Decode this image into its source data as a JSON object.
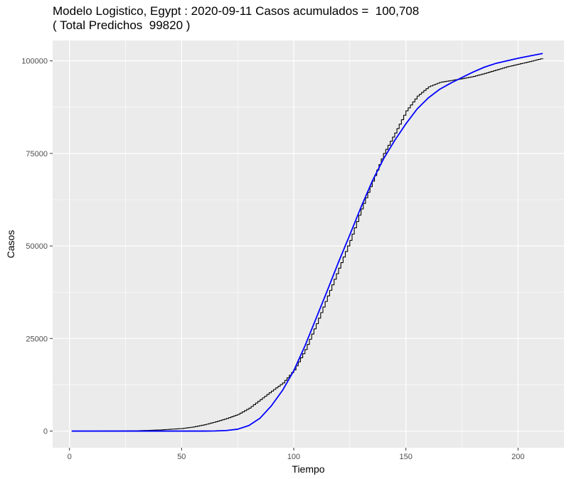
{
  "chart_data": {
    "type": "line",
    "title": "Modelo Logistico, Egypt : 2020-09-11 Casos acumulados =  100,708",
    "subtitle": "( Total Predichos  99820 )",
    "xlabel": "Tiempo",
    "ylabel": "Casos",
    "xlim": [
      -7.5,
      220.5
    ],
    "ylim": [
      -4500,
      105500
    ],
    "x_ticks": [
      0,
      50,
      100,
      150,
      200
    ],
    "x_tick_labels": [
      "0",
      "50",
      "100",
      "150",
      "200"
    ],
    "y_ticks": [
      0,
      25000,
      50000,
      75000,
      100000
    ],
    "y_tick_labels": [
      "0",
      "25000",
      "50000",
      "75000",
      "100000"
    ],
    "grid": true,
    "series": [
      {
        "style": "step",
        "color": "#000000",
        "points": [
          [
            1,
            0
          ],
          [
            20,
            20
          ],
          [
            30,
            100
          ],
          [
            40,
            300
          ],
          [
            50,
            700
          ],
          [
            55,
            1100
          ],
          [
            60,
            1700
          ],
          [
            65,
            2500
          ],
          [
            70,
            3400
          ],
          [
            75,
            4500
          ],
          [
            80,
            6200
          ],
          [
            85,
            8500
          ],
          [
            90,
            10800
          ],
          [
            95,
            13000
          ],
          [
            100,
            16500
          ],
          [
            105,
            22000
          ],
          [
            110,
            29000
          ],
          [
            115,
            36500
          ],
          [
            120,
            44000
          ],
          [
            125,
            51500
          ],
          [
            130,
            60000
          ],
          [
            135,
            67500
          ],
          [
            140,
            75000
          ],
          [
            145,
            80500
          ],
          [
            150,
            86500
          ],
          [
            155,
            90500
          ],
          [
            160,
            93000
          ],
          [
            165,
            94200
          ],
          [
            170,
            94700
          ],
          [
            175,
            95200
          ],
          [
            180,
            95800
          ],
          [
            185,
            96600
          ],
          [
            190,
            97500
          ],
          [
            195,
            98400
          ],
          [
            200,
            99100
          ],
          [
            205,
            99800
          ],
          [
            211,
            100708
          ]
        ]
      },
      {
        "style": "line",
        "color": "#0000ff",
        "points": [
          [
            1,
            0
          ],
          [
            20,
            0
          ],
          [
            40,
            0
          ],
          [
            60,
            0
          ],
          [
            65,
            30
          ],
          [
            70,
            150
          ],
          [
            75,
            500
          ],
          [
            80,
            1500
          ],
          [
            85,
            3500
          ],
          [
            90,
            6800
          ],
          [
            95,
            11000
          ],
          [
            100,
            16300
          ],
          [
            105,
            23000
          ],
          [
            110,
            30500
          ],
          [
            115,
            38000
          ],
          [
            120,
            45700
          ],
          [
            125,
            53000
          ],
          [
            130,
            60500
          ],
          [
            135,
            67500
          ],
          [
            140,
            73500
          ],
          [
            145,
            78500
          ],
          [
            150,
            83000
          ],
          [
            155,
            87000
          ],
          [
            160,
            90000
          ],
          [
            165,
            92300
          ],
          [
            170,
            94000
          ],
          [
            175,
            95500
          ],
          [
            180,
            97000
          ],
          [
            185,
            98300
          ],
          [
            190,
            99300
          ],
          [
            195,
            100000
          ],
          [
            200,
            100700
          ],
          [
            205,
            101300
          ],
          [
            211,
            102000
          ]
        ]
      }
    ]
  }
}
